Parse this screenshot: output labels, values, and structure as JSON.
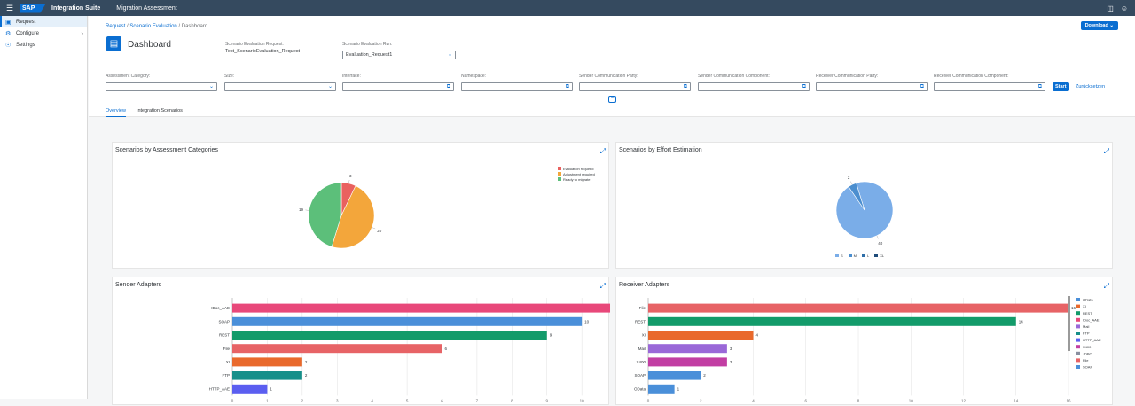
{
  "shell": {
    "logo": "SAP",
    "product": "Integration Suite",
    "app": "Migration Assessment",
    "menu_icon": "menu-icon",
    "icons": [
      "notifications-icon",
      "user-icon"
    ]
  },
  "sidebar": {
    "items": [
      {
        "label": "Request",
        "icon": "document-icon",
        "active": true
      },
      {
        "label": "Configure",
        "icon": "configure-icon",
        "has_chevron": true
      },
      {
        "label": "Settings",
        "icon": "settings-icon"
      }
    ]
  },
  "breadcrumb": {
    "items": [
      "Request",
      "Scenario Evaluation",
      "Dashboard"
    ]
  },
  "page": {
    "title": "Dashboard",
    "download_label": "Download"
  },
  "header_fields": {
    "request_label": "Scenario Evaluation Request:",
    "request_value": "Test_ScenarioEvaluation_Request",
    "run_label": "Scenario Evaluation Run:",
    "run_value": "Evaluation_Request1"
  },
  "filters": [
    {
      "label": "Assessment Category:",
      "value": "",
      "type": "select"
    },
    {
      "label": "Size:",
      "value": "",
      "type": "select"
    },
    {
      "label": "Interface:",
      "value": "",
      "type": "valuehelp"
    },
    {
      "label": "Namespace:",
      "value": "",
      "type": "valuehelp"
    },
    {
      "label": "Sender Communication Party:",
      "value": "",
      "type": "valuehelp"
    },
    {
      "label": "Sender Communication Component:",
      "value": "",
      "type": "valuehelp"
    },
    {
      "label": "Receiver Communication Party:",
      "value": "",
      "type": "valuehelp"
    },
    {
      "label": "Receiver Communication Component:",
      "value": "",
      "type": "valuehelp"
    }
  ],
  "filter_actions": {
    "start": "Start",
    "reset": "Zurücksetzen"
  },
  "tabs": [
    {
      "label": "Overview",
      "selected": true
    },
    {
      "label": "Integration Scenarios",
      "selected": false
    }
  ],
  "cards": {
    "categories_title": "Scenarios by Assessment Categories",
    "effort_title": "Scenarios by Effort Estimation",
    "sender_title": "Sender Adapters",
    "receiver_title": "Receiver Adapters"
  },
  "chart_data": [
    {
      "type": "pie",
      "id": "categories",
      "categories": [
        "Evaluation required",
        "Adjustment required",
        "Ready to migrate"
      ],
      "values": [
        3,
        20,
        19
      ],
      "colors": [
        "#e9615f",
        "#f3a63b",
        "#5cbf7a"
      ],
      "legend": "top-right"
    },
    {
      "type": "pie",
      "id": "effort",
      "categories": [
        "S",
        "M",
        "L",
        "XL"
      ],
      "values": [
        40,
        2,
        0,
        0
      ],
      "colors": [
        "#7aade8",
        "#4b8ecf",
        "#2e6ea8",
        "#1f4c7a"
      ],
      "legend": "bottom"
    },
    {
      "type": "bar",
      "id": "sender",
      "orientation": "horizontal",
      "categories": [
        "IDoc_AAE",
        "SOAP",
        "REST",
        "File",
        "XI",
        "FTP",
        "HTTP_AAE"
      ],
      "values": [
        12,
        10,
        9,
        6,
        2,
        2,
        1
      ],
      "colors": [
        "#e8487a",
        "#4a8fd9",
        "#139b6a",
        "#e76366",
        "#e9692c",
        "#168f8a",
        "#5b5ef0"
      ],
      "xlim": [
        0,
        12
      ],
      "xticks": [
        0,
        1,
        2,
        3,
        4,
        5,
        6,
        7,
        8,
        9,
        10,
        11,
        12
      ],
      "legend_items": [
        "XI",
        "REST",
        "IDoc_AAE",
        "FTP",
        "HTTP_AAE",
        "File",
        "SOAP"
      ],
      "legend_colors": [
        "#e9692c",
        "#139b6a",
        "#e8487a",
        "#168f8a",
        "#5b5ef0",
        "#e76366",
        "#4a8fd9"
      ],
      "legend": "right"
    },
    {
      "type": "bar",
      "id": "receiver",
      "orientation": "horizontal",
      "categories": [
        "File",
        "REST",
        "XI",
        "Mail",
        "X400",
        "SOAP",
        "OData"
      ],
      "values": [
        16,
        14,
        4,
        3,
        3,
        2,
        1
      ],
      "colors": [
        "#e76366",
        "#139b6a",
        "#e9692c",
        "#9a68d8",
        "#c23ea3",
        "#4a8fd9",
        "#4a8fd9"
      ],
      "xlim": [
        0,
        16
      ],
      "xticks": [
        0,
        2,
        4,
        6,
        8,
        10,
        12,
        14,
        16
      ],
      "legend_items": [
        "OData",
        "XI",
        "REST",
        "IDoc_AAE",
        "Mail",
        "FTP",
        "HTTP_AAE",
        "X400",
        "JDBC",
        "File",
        "SOAP"
      ],
      "legend_colors": [
        "#4a8fd9",
        "#e9692c",
        "#139b6a",
        "#e8487a",
        "#9a68d8",
        "#168f8a",
        "#5b5ef0",
        "#c23ea3",
        "#8a8fa0",
        "#e76366",
        "#4a8fd9"
      ],
      "legend": "right"
    }
  ]
}
